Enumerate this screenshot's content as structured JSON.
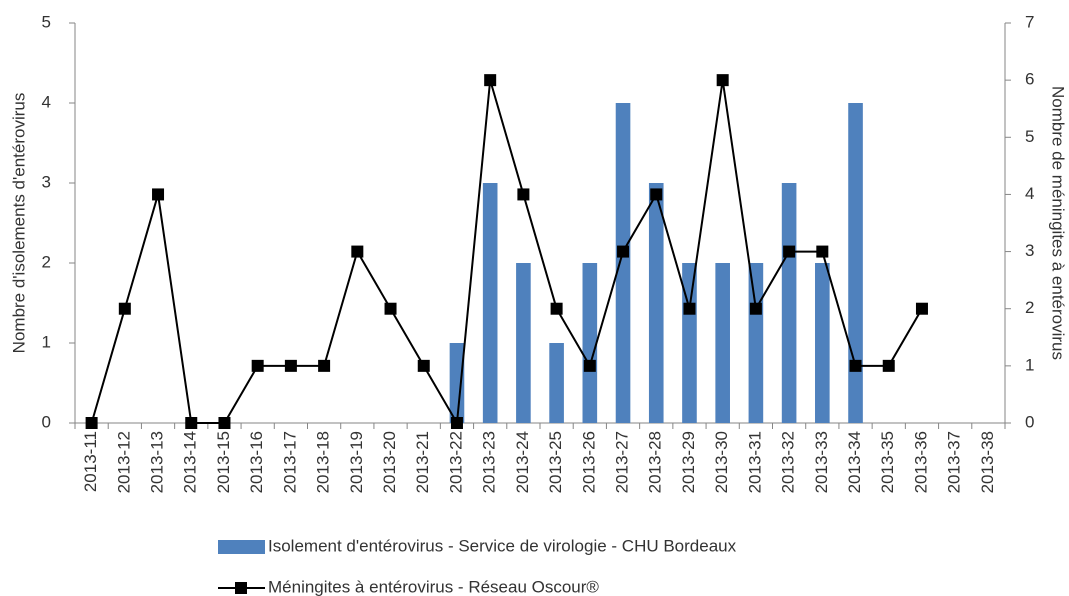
{
  "chart_data": {
    "type": "bar",
    "categories": [
      "2013-11",
      "2013-12",
      "2013-13",
      "2013-14",
      "2013-15",
      "2013-16",
      "2013-17",
      "2013-18",
      "2013-19",
      "2013-20",
      "2013-21",
      "2013-22",
      "2013-23",
      "2013-24",
      "2013-25",
      "2013-26",
      "2013-27",
      "2013-28",
      "2013-29",
      "2013-30",
      "2013-31",
      "2013-32",
      "2013-33",
      "2013-34",
      "2013-35",
      "2013-36",
      "2013-37",
      "2013-38"
    ],
    "series": [
      {
        "name": "Isolement d'entérovirus - Service de virologie - CHU Bordeaux",
        "type": "bar",
        "axis": "y",
        "color": "#4f81bd",
        "values": [
          null,
          null,
          null,
          null,
          null,
          null,
          null,
          null,
          null,
          null,
          null,
          1,
          3,
          2,
          1,
          2,
          4,
          3,
          2,
          2,
          2,
          3,
          2,
          4,
          null,
          null,
          null,
          null
        ]
      },
      {
        "name": "Méningites à entérovirus - Réseau Oscour®",
        "type": "line",
        "axis": "y2",
        "color": "#000000",
        "values": [
          0,
          2,
          4,
          0,
          0,
          1,
          1,
          1,
          3,
          2,
          1,
          0,
          6,
          4,
          2,
          1,
          3,
          4,
          2,
          6,
          2,
          3,
          3,
          1,
          1,
          2,
          null,
          null
        ]
      }
    ],
    "ylabel": "Nombre d'isolements d'entérovirus",
    "y2label": "Nombre de méningites à entérovirus",
    "ylim": [
      0,
      5
    ],
    "yticks": [
      0,
      1,
      2,
      3,
      4,
      5
    ],
    "y2lim": [
      0,
      7
    ],
    "y2ticks": [
      0,
      1,
      2,
      3,
      4,
      5,
      6,
      7
    ],
    "grid": false,
    "legend": "bottom"
  }
}
